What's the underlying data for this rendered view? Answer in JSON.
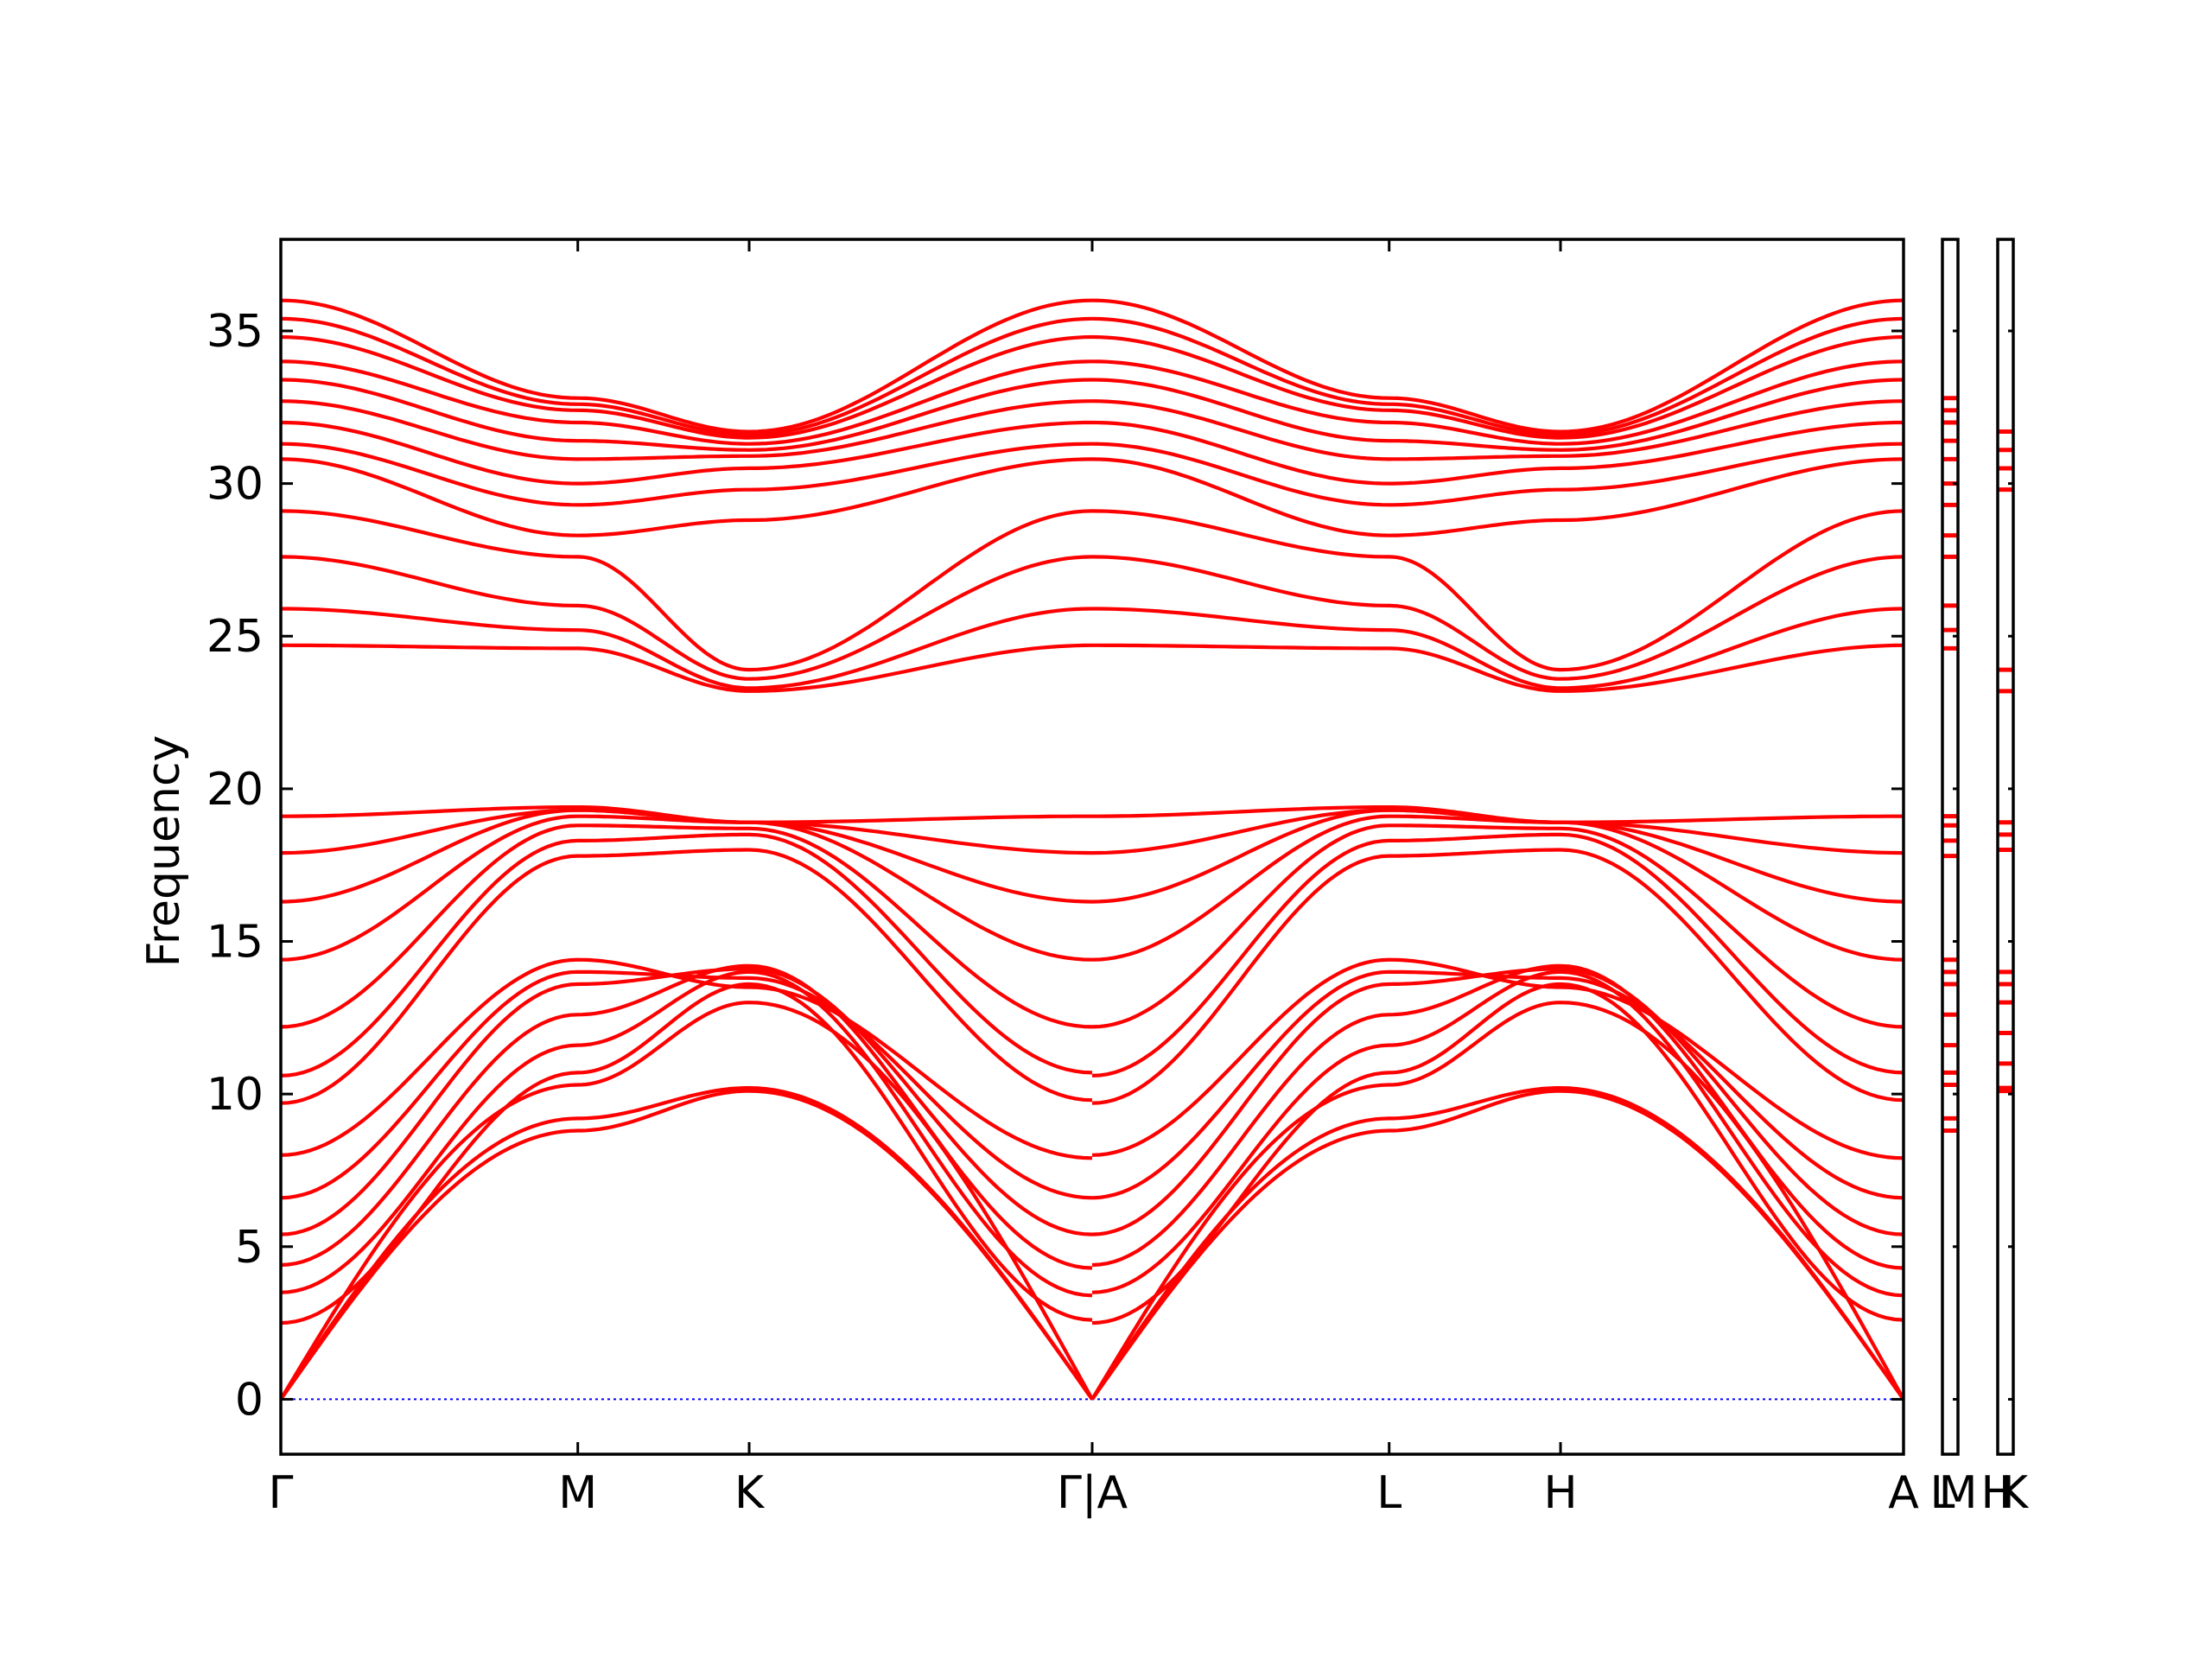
{
  "chart_data": {
    "type": "line",
    "title": "",
    "xlabel": "",
    "ylabel": "Frequency",
    "ylim": [
      -1.8,
      38
    ],
    "yticks": [
      0,
      5,
      10,
      15,
      20,
      25,
      30,
      35
    ],
    "high_symmetry_labels": [
      {
        "label": "Γ",
        "position": 0.0
      },
      {
        "label": "M",
        "position": 1.0
      },
      {
        "label": "K",
        "position": 1.577
      },
      {
        "label": "Γ|A",
        "position": 2.732
      },
      {
        "label": "L",
        "position": 3.732
      },
      {
        "label": "H",
        "position": 4.309
      },
      {
        "label": "A",
        "position": 5.464
      }
    ],
    "side_panel_labels": [
      "L",
      "M",
      "H",
      "K"
    ],
    "line_color": "#ff0000",
    "zero_line_color": "#0000ff",
    "grid": false,
    "note_fields": [],
    "series": [
      {
        "name": "",
        "path": "Γ-M-K-Γ",
        "values_at_labels": [
          0,
          8.8,
          10.1,
          0
        ]
      },
      {
        "name": "",
        "path": "Γ-M-K-Γ",
        "values_at_labels": [
          0,
          9.2,
          10.2,
          0
        ]
      },
      {
        "name": "",
        "path": "Γ-M-K-Γ",
        "values_at_labels": [
          0,
          10.3,
          13.0,
          0
        ]
      },
      {
        "name": "",
        "path": "Γ-M-K-Γ",
        "values_at_labels": [
          2.5,
          10.7,
          13.6,
          2.6
        ]
      },
      {
        "name": "",
        "path": "Γ-M-K-Γ",
        "values_at_labels": [
          3.5,
          11.6,
          14.0,
          3.4
        ]
      },
      {
        "name": "",
        "path": "Γ-M-K-Γ",
        "values_at_labels": [
          4.4,
          12.6,
          14.2,
          4.3
        ]
      },
      {
        "name": "",
        "path": "Γ-M-K-Γ",
        "values_at_labels": [
          5.4,
          13.6,
          14.1,
          5.4
        ]
      },
      {
        "name": "",
        "path": "Γ-M-K-Γ",
        "values_at_labels": [
          6.6,
          14.0,
          13.8,
          6.6
        ]
      },
      {
        "name": "",
        "path": "Γ-M-K-Γ",
        "values_at_labels": [
          8.0,
          14.4,
          13.5,
          7.9
        ]
      },
      {
        "name": "",
        "path": "Γ-M-K-Γ",
        "values_at_labels": [
          9.7,
          17.8,
          18.0,
          9.8
        ]
      },
      {
        "name": "",
        "path": "Γ-M-K-Γ",
        "values_at_labels": [
          10.6,
          18.3,
          18.5,
          10.7
        ]
      },
      {
        "name": "",
        "path": "Γ-M-K-Γ",
        "values_at_labels": [
          12.2,
          18.8,
          18.7,
          12.2
        ]
      },
      {
        "name": "",
        "path": "Γ-M-K-Γ",
        "values_at_labels": [
          14.4,
          19.1,
          18.9,
          14.4
        ]
      },
      {
        "name": "",
        "path": "Γ-M-K-Γ",
        "values_at_labels": [
          16.3,
          19.3,
          18.9,
          16.3
        ]
      },
      {
        "name": "",
        "path": "Γ-M-K-Γ",
        "values_at_labels": [
          17.9,
          19.3,
          18.9,
          17.9
        ]
      },
      {
        "name": "",
        "path": "Γ-M-K-Γ",
        "values_at_labels": [
          19.1,
          19.4,
          18.9,
          19.1
        ]
      },
      {
        "name": "",
        "path": "Γ-M-K-Γ",
        "values_at_labels": [
          24.7,
          24.6,
          23.2,
          24.7
        ]
      },
      {
        "name": "",
        "path": "Γ-M-K-Γ",
        "values_at_labels": [
          25.9,
          25.2,
          23.3,
          25.9
        ]
      },
      {
        "name": "",
        "path": "Γ-M-K-Γ",
        "values_at_labels": [
          27.6,
          26.0,
          23.6,
          27.6
        ]
      },
      {
        "name": "",
        "path": "Γ-M-K-Γ",
        "values_at_labels": [
          29.1,
          27.6,
          23.9,
          29.1
        ]
      },
      {
        "name": "",
        "path": "Γ-M-K-Γ",
        "values_at_labels": [
          30.8,
          28.3,
          28.8,
          30.8
        ]
      },
      {
        "name": "",
        "path": "Γ-M-K-Γ",
        "values_at_labels": [
          31.3,
          29.3,
          29.8,
          31.3
        ]
      },
      {
        "name": "",
        "path": "Γ-M-K-Γ",
        "values_at_labels": [
          32.0,
          30.0,
          30.5,
          32.0
        ]
      },
      {
        "name": "",
        "path": "Γ-M-K-Γ",
        "values_at_labels": [
          32.7,
          30.8,
          30.9,
          32.7
        ]
      },
      {
        "name": "",
        "path": "Γ-M-K-Γ",
        "values_at_labels": [
          33.4,
          31.4,
          31.1,
          33.4
        ]
      },
      {
        "name": "",
        "path": "Γ-M-K-Γ",
        "values_at_labels": [
          34.0,
          32.0,
          31.3,
          34.0
        ]
      },
      {
        "name": "",
        "path": "Γ-M-K-Γ",
        "values_at_labels": [
          34.8,
          32.4,
          31.5,
          34.8
        ]
      },
      {
        "name": "",
        "path": "Γ-M-K-Γ",
        "values_at_labels": [
          35.4,
          32.6,
          31.6,
          35.4
        ]
      },
      {
        "name": "",
        "path": "Γ-M-K-Γ",
        "values_at_labels": [
          36.0,
          32.8,
          31.7,
          36.0
        ]
      }
    ]
  }
}
